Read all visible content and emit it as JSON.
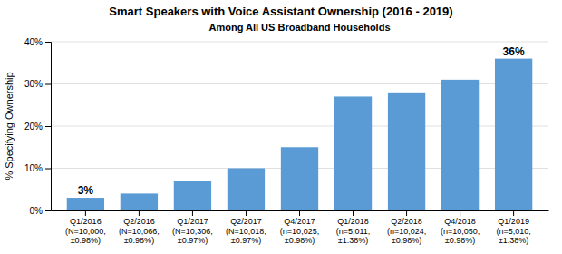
{
  "chart_data": {
    "type": "bar",
    "title": "Smart Speakers with Voice Assistant Ownership (2016 - 2019)",
    "subtitle": "Among All US Broadband Households",
    "ylabel": "% Specifying Ownership",
    "categories": [
      "Q1/2016\n(N=10,000,\n±0.98%)",
      "Q2/2016\n(N=10,066,\n±0.98%)",
      "Q1/2017\n(N=10,306,\n±0.97%)",
      "Q2/2017\n(N=10,018,\n±0.97%)",
      "Q4/2017\n(n=10,025,\n±0.98%)",
      "Q1/2018\n(n=5,011,\n±1.38%)",
      "Q2/2018\n(n=10,024,\n±0.98%)",
      "Q4/2018\n(n=10,050,\n±0.98%)",
      "Q1/2019\n(n=5,010,\n±1.38%)"
    ],
    "values": [
      3,
      4,
      7,
      10,
      15,
      27,
      28,
      31,
      36
    ],
    "value_labels": [
      "3%",
      null,
      null,
      null,
      null,
      null,
      null,
      null,
      "36%"
    ],
    "data_labels": true,
    "color": "#5B9BD5",
    "ylim": [
      0,
      40
    ],
    "yticks": [
      {
        "value": 0,
        "label": "0%"
      },
      {
        "value": 10,
        "label": "10%"
      },
      {
        "value": 20,
        "label": "20%"
      },
      {
        "value": 30,
        "label": "30%"
      },
      {
        "value": 40,
        "label": "40%"
      }
    ],
    "grid": true
  }
}
